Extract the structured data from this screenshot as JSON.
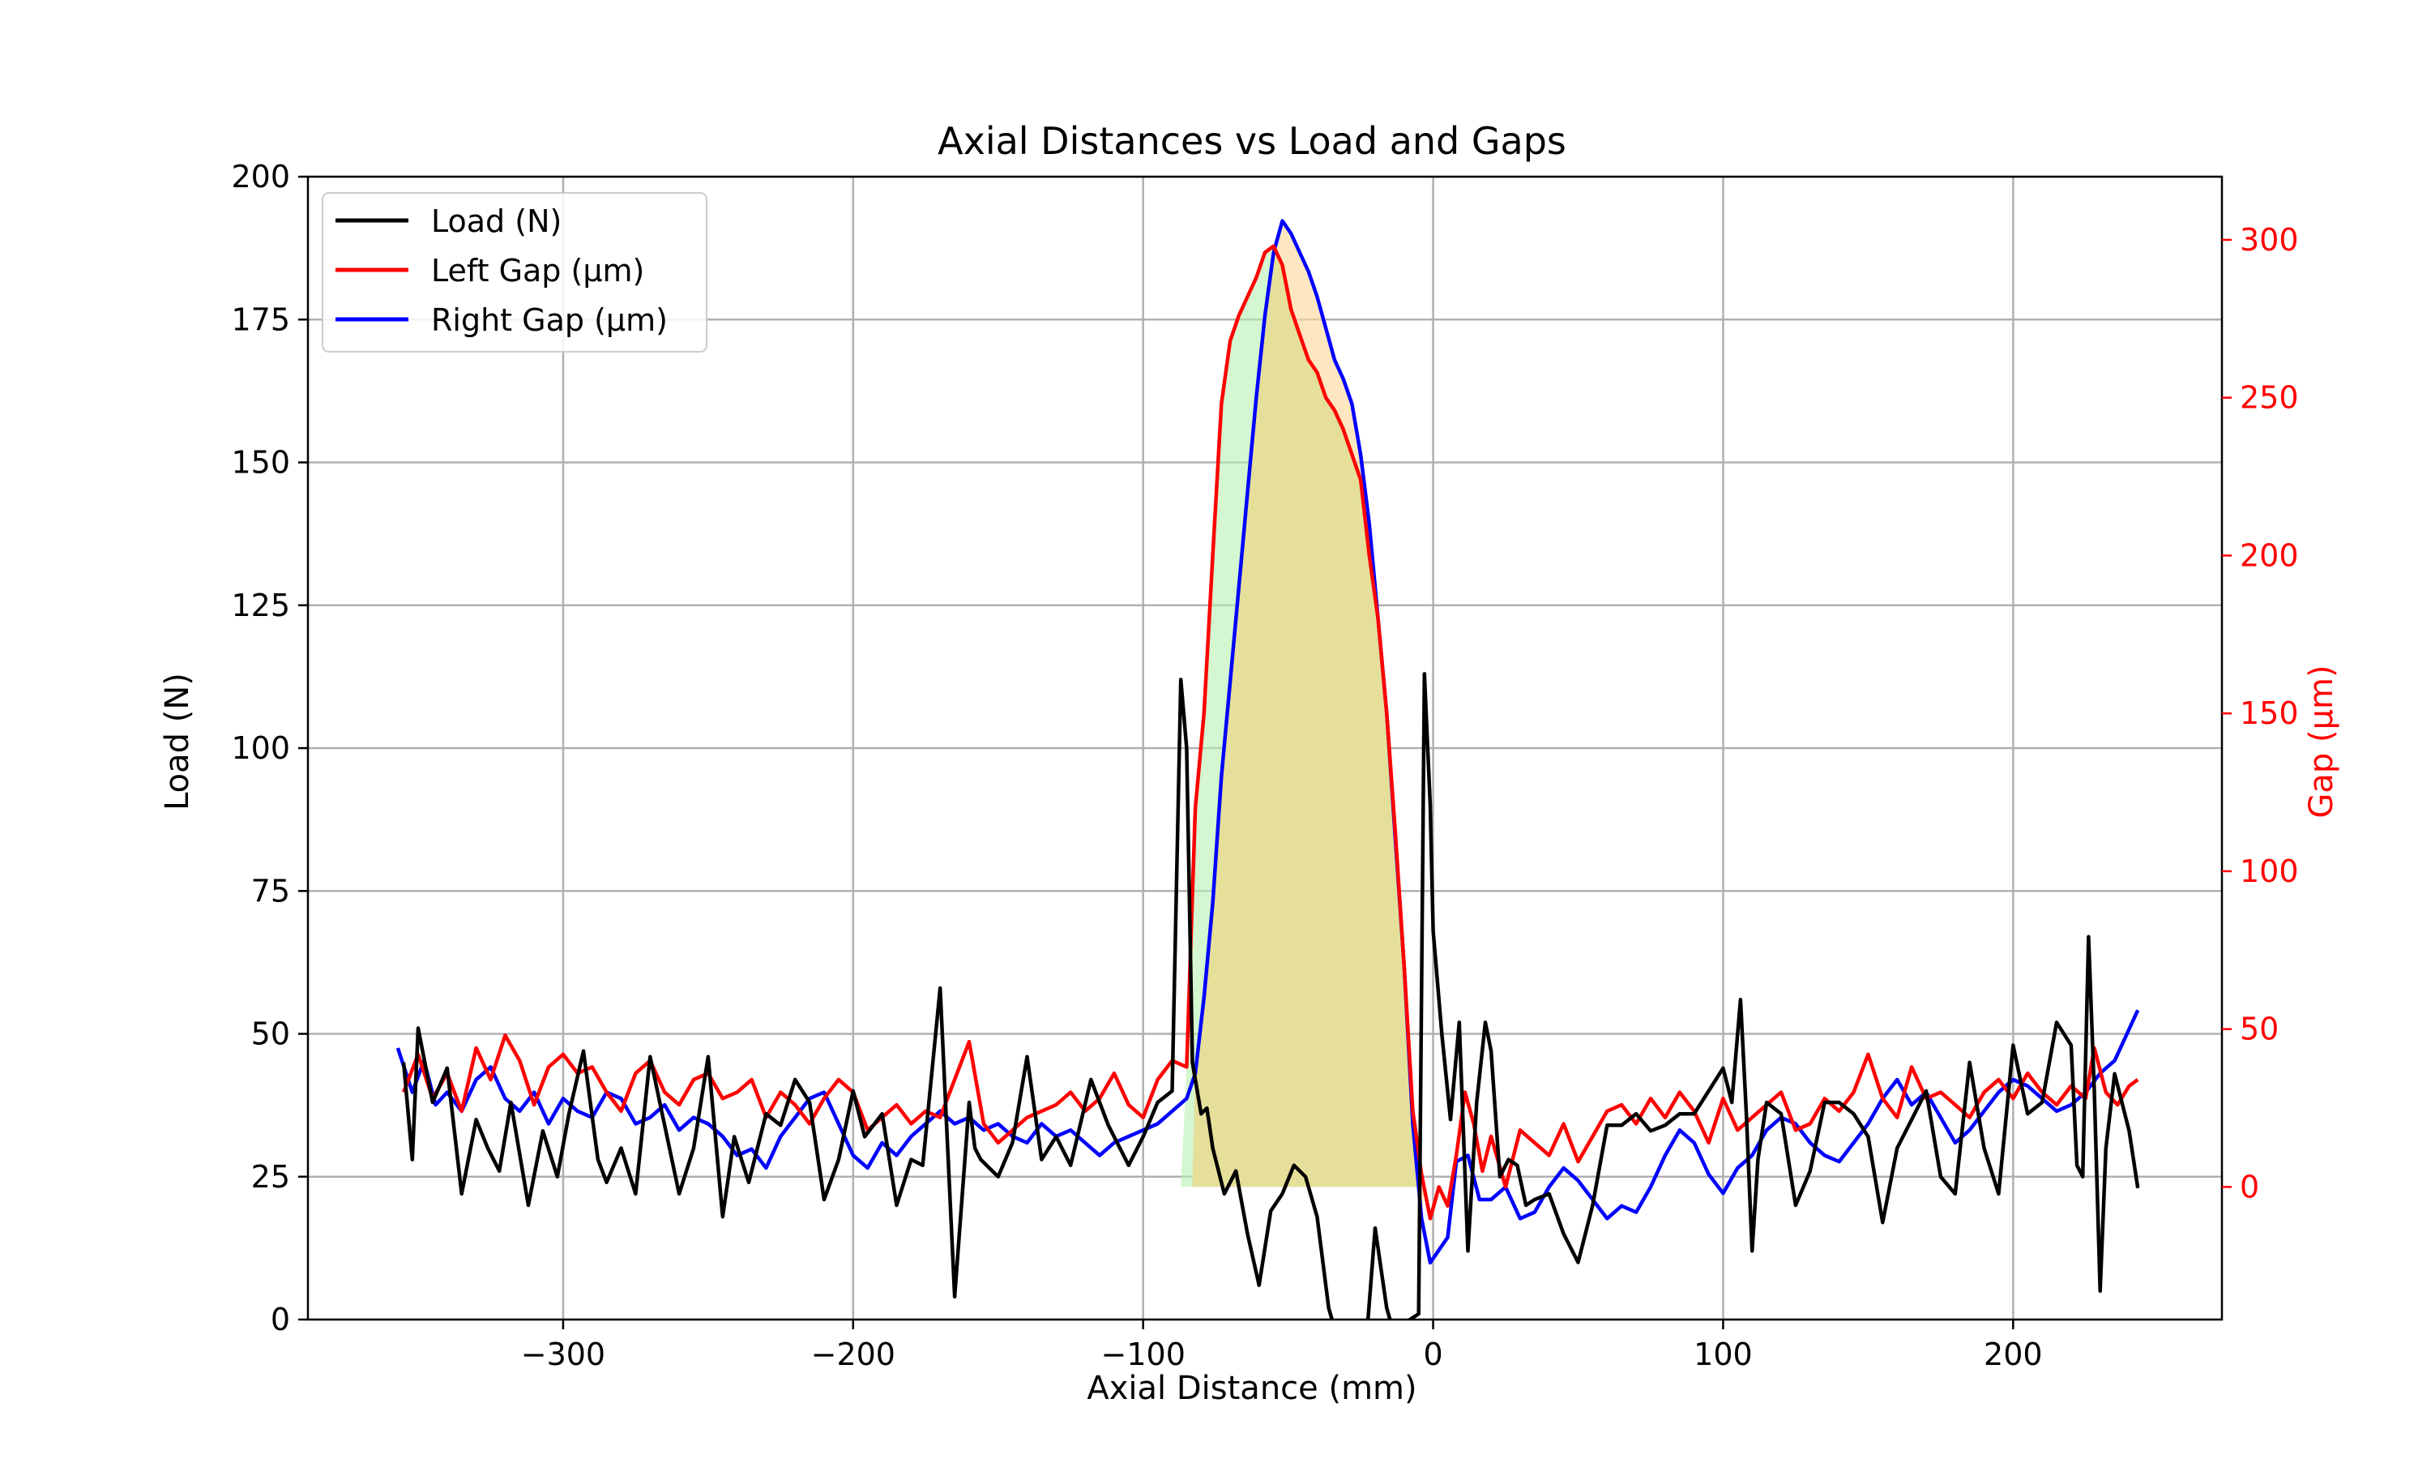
{
  "chart_data": {
    "type": "line",
    "title": "Axial Distances vs Load and Gaps",
    "xlabel": "Axial Distance (mm)",
    "ylabel": "Load (N)",
    "y2label": "Gap (µm)",
    "xlim": [
      -388,
      272
    ],
    "ylim": [
      0,
      200
    ],
    "y2lim": [
      -42,
      320
    ],
    "x_ticks": [
      -300,
      -200,
      -100,
      0,
      100,
      200
    ],
    "x_tick_labels": [
      "−300",
      "−200",
      "−100",
      "0",
      "100",
      "200"
    ],
    "y_ticks": [
      0,
      25,
      50,
      75,
      100,
      125,
      150,
      175,
      200
    ],
    "y_tick_labels": [
      "0",
      "25",
      "50",
      "75",
      "100",
      "125",
      "150",
      "175",
      "200"
    ],
    "y2_ticks": [
      0,
      50,
      100,
      150,
      200,
      250,
      300
    ],
    "y2_tick_labels": [
      "0",
      "50",
      "100",
      "150",
      "200",
      "250",
      "300"
    ],
    "grid": true,
    "legend_position": "top-left",
    "colors": {
      "load": "#000000",
      "left_gap": "#ff0000",
      "right_gap": "#0000ff",
      "y2_axis": "#ff0000",
      "fill_orange": "#fdd9a0",
      "fill_green": "#b8f0b0",
      "fill_overlap": "#e5df9a"
    },
    "series": [
      {
        "name": "Load (N)",
        "axis": "left",
        "color": "#000000",
        "x": [
          -355,
          -352,
          -350,
          -345,
          -340,
          -335,
          -330,
          -326,
          -322,
          -318,
          -312,
          -307,
          -302,
          -298,
          -293,
          -288,
          -285,
          -280,
          -275,
          -270,
          -265,
          -260,
          -255,
          -250,
          -245,
          -241,
          -236,
          -230,
          -225,
          -220,
          -215,
          -210,
          -205,
          -200,
          -196,
          -190,
          -185,
          -180,
          -176,
          -170,
          -165,
          -160,
          -158,
          -156,
          -150,
          -145,
          -140,
          -135,
          -130,
          -125,
          -118,
          -112,
          -105,
          -100,
          -95,
          -90,
          -87,
          -85,
          -83,
          -80,
          -78,
          -76,
          -72,
          -68,
          -64,
          -60,
          -56,
          -52,
          -48,
          -44,
          -40,
          -36,
          -32,
          -28,
          -24,
          -20,
          -16,
          -12,
          -8,
          -5,
          -3,
          -1,
          0,
          3,
          6,
          9,
          12,
          15,
          18,
          20,
          23,
          26,
          29,
          32,
          35,
          40,
          45,
          50,
          55,
          60,
          65,
          70,
          75,
          80,
          85,
          90,
          95,
          100,
          103,
          106,
          108,
          110,
          112,
          115,
          120,
          125,
          130,
          135,
          140,
          145,
          150,
          155,
          160,
          165,
          170,
          175,
          180,
          185,
          190,
          195,
          200,
          205,
          210,
          215,
          220,
          222,
          224,
          226,
          228,
          230,
          232,
          235,
          240,
          243
        ],
        "values": [
          45,
          28,
          51,
          38,
          44,
          22,
          35,
          30,
          26,
          38,
          20,
          33,
          25,
          36,
          47,
          28,
          24,
          30,
          22,
          46,
          34,
          22,
          30,
          46,
          18,
          32,
          24,
          36,
          34,
          42,
          38,
          21,
          28,
          40,
          32,
          36,
          20,
          28,
          27,
          58,
          4,
          38,
          30,
          28,
          25,
          31,
          46,
          28,
          32,
          27,
          42,
          34,
          27,
          32,
          38,
          40,
          112,
          100,
          45,
          36,
          37,
          30,
          22,
          26,
          15,
          6,
          19,
          22,
          27,
          25,
          18,
          2,
          -5,
          -8,
          -10,
          16,
          2,
          -5,
          0,
          1,
          113,
          90,
          68,
          50,
          35,
          52,
          12,
          38,
          52,
          47,
          25,
          28,
          27,
          20,
          21,
          22,
          15,
          10,
          20,
          34,
          34,
          36,
          33,
          34,
          36,
          36,
          40,
          44,
          38,
          56,
          36,
          12,
          28,
          38,
          36,
          20,
          26,
          38,
          38,
          36,
          32,
          17,
          30,
          35,
          40,
          25,
          22,
          45,
          30,
          22,
          48,
          36,
          38,
          52,
          48,
          27,
          25,
          67,
          40,
          5,
          30,
          43,
          33,
          23
        ]
      },
      {
        "name": "Left Gap (µm)",
        "axis": "right",
        "color": "#ff0000",
        "x": [
          -355,
          -350,
          -345,
          -340,
          -335,
          -330,
          -325,
          -320,
          -315,
          -310,
          -305,
          -300,
          -295,
          -290,
          -285,
          -280,
          -275,
          -270,
          -265,
          -260,
          -255,
          -250,
          -245,
          -240,
          -235,
          -230,
          -225,
          -220,
          -215,
          -210,
          -205,
          -200,
          -195,
          -190,
          -185,
          -180,
          -175,
          -170,
          -165,
          -160,
          -155,
          -150,
          -145,
          -140,
          -135,
          -130,
          -125,
          -120,
          -115,
          -110,
          -105,
          -100,
          -95,
          -90,
          -85,
          -82,
          -79,
          -76,
          -73,
          -70,
          -67,
          -64,
          -61,
          -58,
          -55,
          -52,
          -49,
          -46,
          -43,
          -40,
          -37,
          -34,
          -31,
          -28,
          -25,
          -22,
          -19,
          -16,
          -13,
          -10,
          -7,
          -4,
          -1,
          2,
          5,
          8,
          11,
          14,
          17,
          20,
          25,
          30,
          35,
          40,
          45,
          50,
          55,
          60,
          65,
          70,
          75,
          80,
          85,
          90,
          95,
          100,
          105,
          110,
          115,
          120,
          125,
          130,
          135,
          140,
          145,
          150,
          155,
          160,
          165,
          170,
          175,
          180,
          185,
          190,
          195,
          200,
          205,
          210,
          215,
          220,
          225,
          228,
          232,
          236,
          240,
          243
        ],
        "values": [
          30,
          42,
          28,
          36,
          24,
          44,
          34,
          48,
          40,
          26,
          38,
          42,
          36,
          38,
          30,
          24,
          36,
          40,
          30,
          26,
          34,
          36,
          28,
          30,
          34,
          22,
          30,
          26,
          20,
          28,
          34,
          30,
          18,
          22,
          26,
          20,
          24,
          22,
          34,
          46,
          20,
          14,
          18,
          22,
          24,
          26,
          30,
          24,
          28,
          36,
          26,
          22,
          34,
          40,
          38,
          120,
          150,
          200,
          248,
          268,
          276,
          282,
          288,
          296,
          298,
          292,
          278,
          270,
          262,
          258,
          250,
          246,
          240,
          232,
          224,
          200,
          180,
          150,
          112,
          70,
          24,
          4,
          -10,
          0,
          -6,
          10,
          30,
          20,
          5,
          16,
          0,
          18,
          14,
          10,
          20,
          8,
          16,
          24,
          26,
          20,
          28,
          22,
          30,
          24,
          14,
          28,
          18,
          22,
          26,
          30,
          18,
          20,
          28,
          24,
          30,
          42,
          28,
          22,
          38,
          28,
          30,
          26,
          22,
          30,
          34,
          28,
          36,
          30,
          26,
          32,
          28,
          44,
          30,
          26,
          32,
          34
        ]
      },
      {
        "name": "Right Gap (µm)",
        "axis": "right",
        "color": "#0000ff",
        "x": [
          -357,
          -352,
          -348,
          -344,
          -340,
          -335,
          -330,
          -325,
          -320,
          -315,
          -310,
          -305,
          -300,
          -295,
          -290,
          -285,
          -280,
          -275,
          -270,
          -265,
          -260,
          -255,
          -250,
          -245,
          -240,
          -235,
          -230,
          -225,
          -220,
          -215,
          -210,
          -205,
          -200,
          -195,
          -190,
          -185,
          -180,
          -175,
          -170,
          -165,
          -160,
          -155,
          -150,
          -145,
          -140,
          -135,
          -130,
          -125,
          -120,
          -115,
          -110,
          -105,
          -100,
          -95,
          -90,
          -85,
          -82,
          -79,
          -76,
          -73,
          -70,
          -67,
          -64,
          -61,
          -58,
          -55,
          -52,
          -49,
          -46,
          -43,
          -40,
          -37,
          -34,
          -31,
          -28,
          -25,
          -22,
          -19,
          -16,
          -13,
          -10,
          -7,
          -4,
          -1,
          2,
          5,
          8,
          12,
          16,
          20,
          25,
          30,
          35,
          40,
          45,
          50,
          55,
          60,
          65,
          70,
          75,
          80,
          85,
          90,
          95,
          100,
          105,
          110,
          115,
          120,
          125,
          130,
          135,
          140,
          145,
          150,
          155,
          160,
          165,
          170,
          175,
          180,
          185,
          190,
          195,
          200,
          205,
          210,
          215,
          220,
          225,
          230,
          235,
          240,
          243
        ],
        "values": [
          44,
          30,
          40,
          26,
          30,
          24,
          34,
          38,
          28,
          24,
          30,
          20,
          28,
          24,
          22,
          30,
          28,
          20,
          22,
          26,
          18,
          22,
          20,
          16,
          10,
          12,
          6,
          16,
          22,
          28,
          30,
          20,
          10,
          6,
          14,
          10,
          16,
          20,
          24,
          20,
          22,
          18,
          20,
          16,
          14,
          20,
          16,
          18,
          14,
          10,
          14,
          16,
          18,
          20,
          24,
          28,
          36,
          60,
          90,
          130,
          160,
          190,
          220,
          250,
          276,
          296,
          306,
          302,
          296,
          290,
          282,
          272,
          262,
          256,
          248,
          232,
          210,
          180,
          150,
          110,
          70,
          20,
          -10,
          -24,
          -20,
          -16,
          8,
          10,
          -4,
          -4,
          0,
          -10,
          -8,
          0,
          6,
          2,
          -4,
          -10,
          -6,
          -8,
          0,
          10,
          18,
          14,
          4,
          -2,
          6,
          10,
          18,
          22,
          20,
          14,
          10,
          8,
          14,
          20,
          28,
          34,
          26,
          30,
          22,
          14,
          18,
          24,
          30,
          34,
          32,
          28,
          24,
          26,
          30,
          36,
          40,
          50,
          56
        ]
      }
    ],
    "shaded_regions": [
      {
        "between": "Left Gap (µm) and 0",
        "x_range": [
          -87,
          -5
        ],
        "color": "#b8f0b0"
      },
      {
        "between": "Right Gap (µm) and 0",
        "x_range": [
          -83,
          -3
        ],
        "color": "#fdd9a0"
      }
    ]
  }
}
